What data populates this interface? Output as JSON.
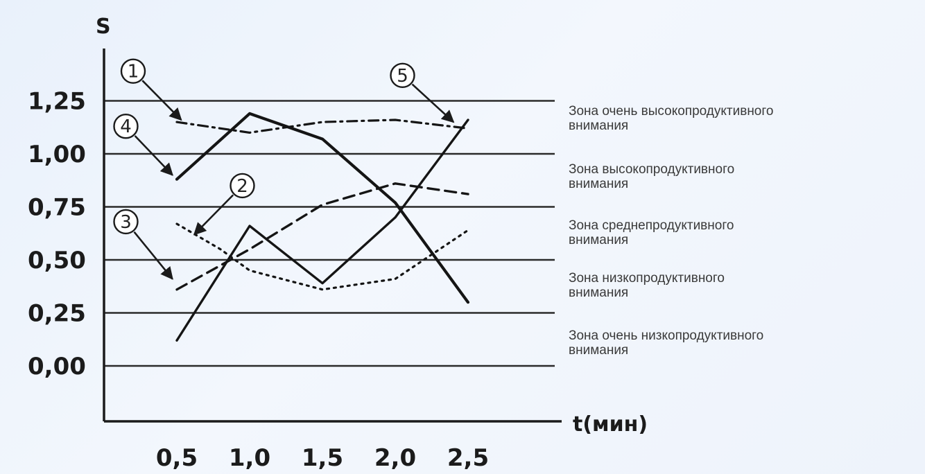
{
  "chart_data": {
    "type": "line",
    "ylabel": "S",
    "xlabel": "t(мин)",
    "xlim": [
      0,
      3.0
    ],
    "ylim": [
      -0.27,
      1.45
    ],
    "x_ticks": [
      "0,5",
      "1,0",
      "1,5",
      "2,0",
      "2,5"
    ],
    "x_tick_values": [
      0.5,
      1.0,
      1.5,
      2.0,
      2.5
    ],
    "y_ticks": [
      "0,00",
      "0,25",
      "0,50",
      "0,75",
      "1,00",
      "1,25"
    ],
    "y_tick_values": [
      0.0,
      0.25,
      0.5,
      0.75,
      1.0,
      1.25
    ],
    "grid": "horizontal",
    "zones": [
      {
        "boundary": 1.25,
        "label": [
          "Зона очень высокопродуктивного",
          "внимания"
        ]
      },
      {
        "boundary": 1.0,
        "label": [
          "Зона высокопродуктивного",
          "внимания"
        ]
      },
      {
        "boundary": 0.75,
        "label": [
          "Зона среднепродуктивного",
          "внимания"
        ]
      },
      {
        "boundary": 0.5,
        "label": [
          "Зона низкопродуктивного",
          "внимания"
        ]
      },
      {
        "boundary": 0.25,
        "label": [
          "Зона очень низкопродуктивного",
          "внимания"
        ]
      }
    ],
    "series": [
      {
        "name": "1",
        "style": "dashdot",
        "x": [
          0.5,
          1.0,
          1.5,
          2.0,
          2.5
        ],
        "y": [
          1.15,
          1.1,
          1.15,
          1.16,
          1.12
        ],
        "label_at": [
          0.2,
          1.39
        ],
        "arrow_to": [
          0.53,
          1.16
        ]
      },
      {
        "name": "2",
        "style": "dotted",
        "x": [
          0.5,
          0.8,
          1.0,
          1.5,
          2.0,
          2.5
        ],
        "y": [
          0.67,
          0.55,
          0.45,
          0.36,
          0.41,
          0.64
        ],
        "label_at": [
          0.95,
          0.85
        ],
        "arrow_to": [
          0.62,
          0.62
        ]
      },
      {
        "name": "3",
        "style": "dashed",
        "x": [
          0.5,
          1.0,
          1.5,
          2.0,
          2.5
        ],
        "y": [
          0.36,
          0.55,
          0.76,
          0.86,
          0.81
        ],
        "label_at": [
          0.15,
          0.68
        ],
        "arrow_to": [
          0.47,
          0.41
        ]
      },
      {
        "name": "4",
        "style": "solid",
        "x": [
          0.5,
          1.0,
          1.5,
          2.0,
          2.5
        ],
        "y": [
          0.88,
          1.19,
          1.07,
          0.77,
          0.3
        ],
        "label_at": [
          0.15,
          1.13
        ],
        "arrow_to": [
          0.47,
          0.9
        ]
      },
      {
        "name": "5",
        "style": "solid-thin",
        "x": [
          0.5,
          1.0,
          1.5,
          2.0,
          2.5
        ],
        "y": [
          0.12,
          0.66,
          0.39,
          0.7,
          1.16
        ],
        "label_at": [
          2.05,
          1.37
        ],
        "arrow_to": [
          2.4,
          1.15
        ]
      }
    ]
  }
}
